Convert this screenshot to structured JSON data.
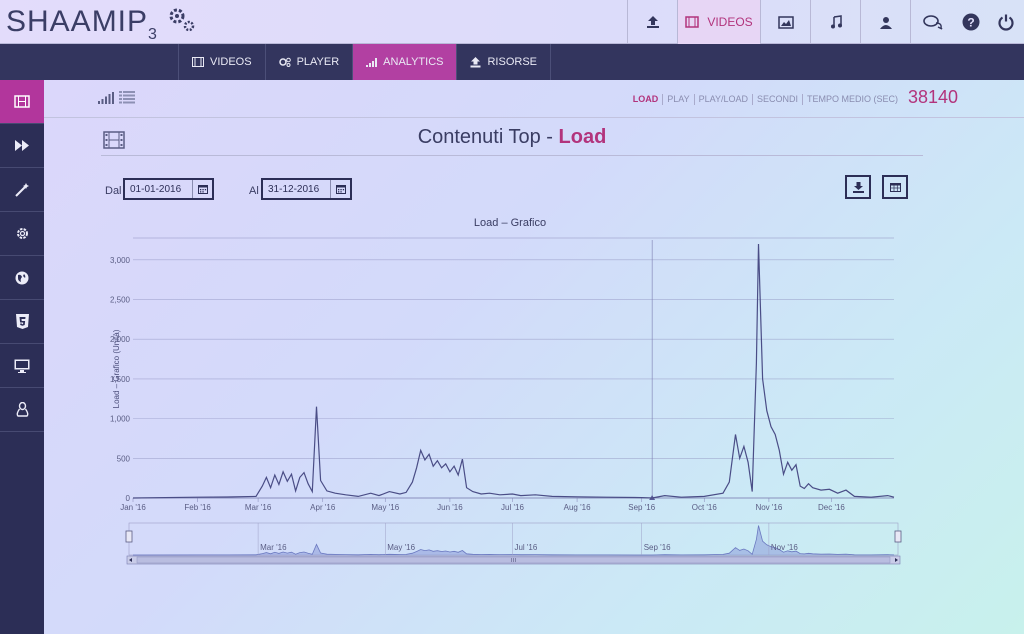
{
  "logo": {
    "text": "SHAAMIP",
    "sub": "3"
  },
  "topnav": {
    "upload": "upload-icon",
    "videos_label": "VIDEOS",
    "image": "image-icon",
    "music": "music-icon",
    "user": "user-icon",
    "chat": "chat-icon",
    "help": "help-icon",
    "power": "power-icon"
  },
  "tabs": [
    {
      "label": "VIDEOS",
      "icon": "film-icon"
    },
    {
      "label": "PLAYER",
      "icon": "cogs-icon"
    },
    {
      "label": "ANALYTICS",
      "icon": "signal-icon"
    },
    {
      "label": "RISORSE",
      "icon": "upload-icon"
    }
  ],
  "sidebar": [
    "film-icon",
    "fast-forward-icon",
    "magic-wand-icon",
    "settings-icon",
    "globe-icon",
    "html5-icon",
    "monitor-icon",
    "linux-icon"
  ],
  "metrics": [
    "LOAD",
    "PLAY",
    "PLAY/LOAD",
    "SECONDI",
    "TEMPO MEDIO (SEC)"
  ],
  "total": "38140",
  "title": {
    "prefix": "Contenuti Top - ",
    "highlight": "Load"
  },
  "filters": {
    "from_label": "Dal",
    "from_value": "01-01-2016",
    "to_label": "Al",
    "to_value": "31-12-2016"
  },
  "colors": {
    "accent": "#b2337c",
    "nav": "#33355e",
    "sidebar": "#2c2e56",
    "line": "#4a4d86"
  },
  "chart_data": {
    "type": "line",
    "title": "Load – Grafico",
    "ylabel": "Load – Grafico (Unità)",
    "xlabel": "",
    "ylim": [
      0,
      3250
    ],
    "yticks": [
      "0",
      "500",
      "1,000",
      "1,500",
      "2,000",
      "2,500",
      "3,000"
    ],
    "xticks": [
      "Jan '16",
      "Feb '16",
      "Mar '16",
      "Apr '16",
      "May '16",
      "Jun '16",
      "Jul '16",
      "Aug '16",
      "Sep '16",
      "Oct '16",
      "Nov '16",
      "Dec '16"
    ],
    "navigator_labels": [
      "Mar '16",
      "May '16",
      "Jul '16",
      "Sep '16",
      "Nov '16"
    ],
    "grid": true,
    "series": [
      {
        "name": "Load",
        "points": [
          [
            "2016-01-01",
            0
          ],
          [
            "2016-02-01",
            10
          ],
          [
            "2016-02-15",
            12
          ],
          [
            "2016-02-29",
            20
          ],
          [
            "2016-03-03",
            150
          ],
          [
            "2016-03-05",
            260
          ],
          [
            "2016-03-07",
            130
          ],
          [
            "2016-03-09",
            290
          ],
          [
            "2016-03-11",
            170
          ],
          [
            "2016-03-13",
            330
          ],
          [
            "2016-03-15",
            210
          ],
          [
            "2016-03-17",
            300
          ],
          [
            "2016-03-19",
            90
          ],
          [
            "2016-03-21",
            260
          ],
          [
            "2016-03-23",
            320
          ],
          [
            "2016-03-25",
            180
          ],
          [
            "2016-03-27",
            80
          ],
          [
            "2016-03-29",
            1150
          ],
          [
            "2016-03-31",
            220
          ],
          [
            "2016-04-03",
            90
          ],
          [
            "2016-04-07",
            60
          ],
          [
            "2016-04-12",
            40
          ],
          [
            "2016-04-18",
            20
          ],
          [
            "2016-04-24",
            60
          ],
          [
            "2016-04-28",
            30
          ],
          [
            "2016-05-03",
            80
          ],
          [
            "2016-05-08",
            50
          ],
          [
            "2016-05-11",
            70
          ],
          [
            "2016-05-14",
            200
          ],
          [
            "2016-05-16",
            380
          ],
          [
            "2016-05-18",
            600
          ],
          [
            "2016-05-20",
            480
          ],
          [
            "2016-05-22",
            550
          ],
          [
            "2016-05-24",
            400
          ],
          [
            "2016-05-26",
            470
          ],
          [
            "2016-05-28",
            380
          ],
          [
            "2016-05-30",
            430
          ],
          [
            "2016-06-01",
            330
          ],
          [
            "2016-06-03",
            400
          ],
          [
            "2016-06-05",
            290
          ],
          [
            "2016-06-07",
            490
          ],
          [
            "2016-06-09",
            130
          ],
          [
            "2016-06-12",
            80
          ],
          [
            "2016-06-16",
            50
          ],
          [
            "2016-06-20",
            60
          ],
          [
            "2016-06-25",
            40
          ],
          [
            "2016-07-01",
            50
          ],
          [
            "2016-07-05",
            30
          ],
          [
            "2016-07-12",
            40
          ],
          [
            "2016-07-20",
            20
          ],
          [
            "2016-08-01",
            15
          ],
          [
            "2016-08-15",
            10
          ],
          [
            "2016-09-01",
            5
          ],
          [
            "2016-09-06",
            0
          ],
          [
            "2016-09-12",
            30
          ],
          [
            "2016-09-20",
            10
          ],
          [
            "2016-10-01",
            20
          ],
          [
            "2016-10-10",
            60
          ],
          [
            "2016-10-13",
            200
          ],
          [
            "2016-10-16",
            800
          ],
          [
            "2016-10-18",
            500
          ],
          [
            "2016-10-20",
            650
          ],
          [
            "2016-10-22",
            450
          ],
          [
            "2016-10-24",
            80
          ],
          [
            "2016-10-26",
            1700
          ],
          [
            "2016-10-27",
            3200
          ],
          [
            "2016-10-29",
            1500
          ],
          [
            "2016-10-31",
            1100
          ],
          [
            "2016-11-02",
            900
          ],
          [
            "2016-11-04",
            800
          ],
          [
            "2016-11-06",
            600
          ],
          [
            "2016-11-08",
            300
          ],
          [
            "2016-11-10",
            450
          ],
          [
            "2016-11-12",
            350
          ],
          [
            "2016-11-14",
            420
          ],
          [
            "2016-11-16",
            150
          ],
          [
            "2016-11-18",
            120
          ],
          [
            "2016-11-20",
            180
          ],
          [
            "2016-11-22",
            130
          ],
          [
            "2016-11-26",
            100
          ],
          [
            "2016-11-30",
            110
          ],
          [
            "2016-12-04",
            60
          ],
          [
            "2016-12-08",
            100
          ],
          [
            "2016-12-12",
            20
          ],
          [
            "2016-12-20",
            10
          ],
          [
            "2016-12-28",
            30
          ],
          [
            "2016-12-31",
            10
          ]
        ]
      }
    ]
  }
}
